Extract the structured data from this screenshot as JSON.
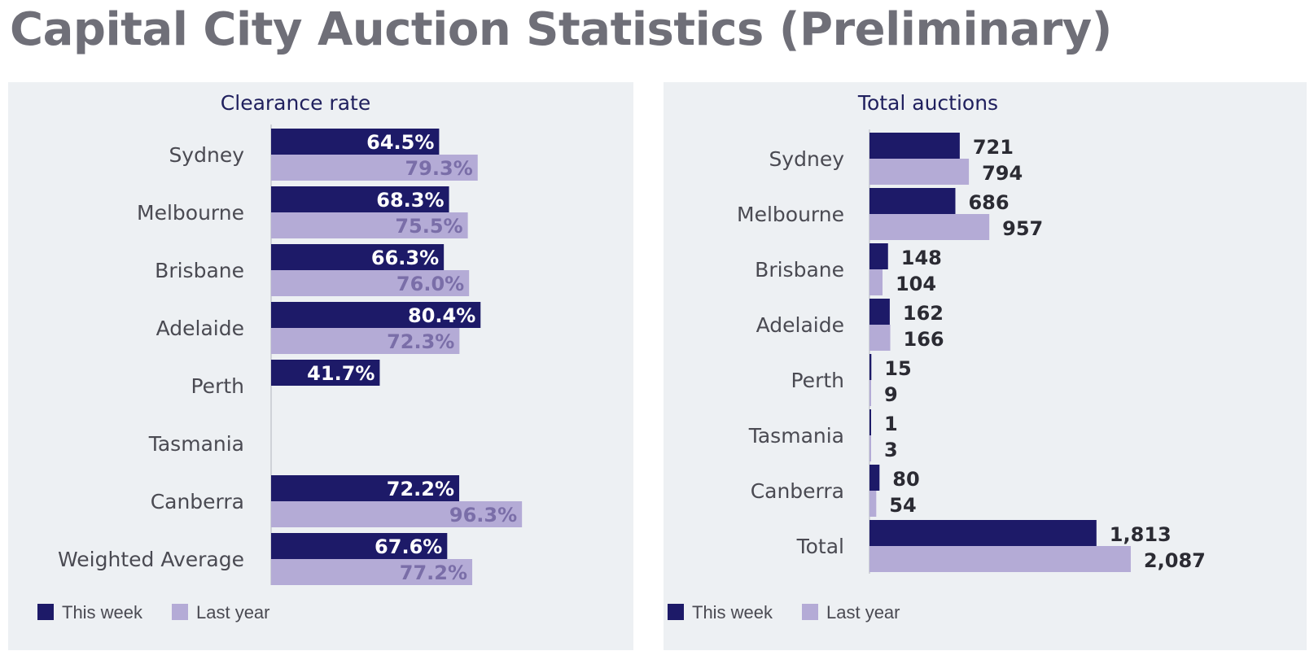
{
  "title": "Capital City Auction Statistics (Preliminary)",
  "colors": {
    "this_week": "#1d1a68",
    "last_year": "#b4abd6",
    "panel_bg": "#edf0f3",
    "title": "#6f6f78"
  },
  "chart_data": [
    {
      "type": "bar",
      "orientation": "horizontal",
      "title": "Clearance rate",
      "xlim": [
        0,
        100
      ],
      "categories": [
        "Sydney",
        "Melbourne",
        "Brisbane",
        "Adelaide",
        "Perth",
        "Tasmania",
        "Canberra",
        "Weighted Average"
      ],
      "series": [
        {
          "name": "This week",
          "values": [
            64.5,
            68.3,
            66.3,
            80.4,
            41.7,
            null,
            72.2,
            67.6
          ],
          "labels": [
            "64.5%",
            "68.3%",
            "66.3%",
            "80.4%",
            "41.7%",
            "",
            "72.2%",
            "67.6%"
          ]
        },
        {
          "name": "Last year",
          "values": [
            79.3,
            75.5,
            76.0,
            72.3,
            null,
            null,
            96.3,
            77.2
          ],
          "labels": [
            "79.3%",
            "75.5%",
            "76.0%",
            "72.3%",
            "",
            "",
            "96.3%",
            "77.2%"
          ]
        }
      ],
      "legend": [
        "This week",
        "Last year"
      ],
      "legend_position": "bottom-left"
    },
    {
      "type": "bar",
      "orientation": "horizontal",
      "title": "Total auctions",
      "xlim": [
        0,
        2250
      ],
      "categories": [
        "Sydney",
        "Melbourne",
        "Brisbane",
        "Adelaide",
        "Perth",
        "Tasmania",
        "Canberra",
        "Total"
      ],
      "series": [
        {
          "name": "This week",
          "values": [
            721,
            686,
            148,
            162,
            15,
            1,
            80,
            1813
          ],
          "labels": [
            "721",
            "686",
            "148",
            "162",
            "15",
            "1",
            "80",
            "1,813"
          ]
        },
        {
          "name": "Last year",
          "values": [
            794,
            957,
            104,
            166,
            9,
            3,
            54,
            2087
          ],
          "labels": [
            "794",
            "957",
            "104",
            "166",
            "9",
            "3",
            "54",
            "2,087"
          ]
        }
      ],
      "legend": [
        "This week",
        "Last year"
      ],
      "legend_position": "bottom-left"
    }
  ]
}
